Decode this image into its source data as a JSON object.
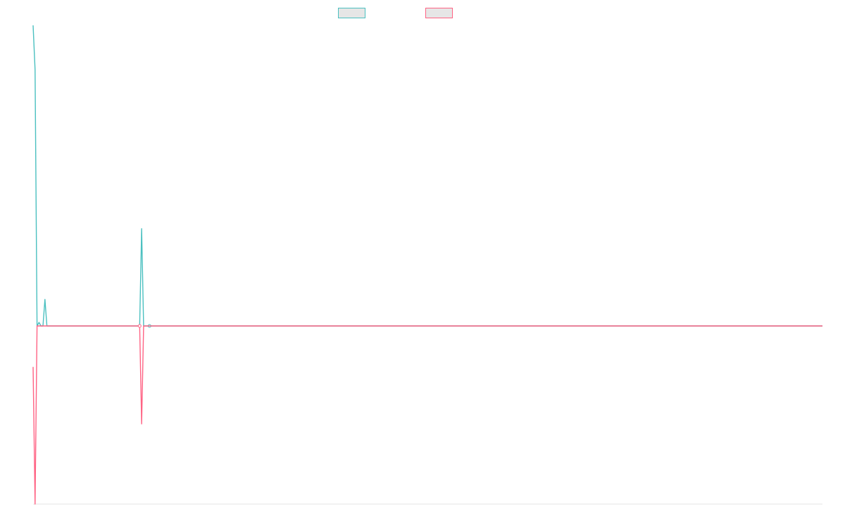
{
  "chart_data": {
    "type": "line",
    "title": "",
    "xlabel": "",
    "ylabel": "",
    "grid": false,
    "legend_position": "top-center",
    "x_count": 400,
    "ylim": [
      -100,
      170
    ],
    "series": [
      {
        "name": "",
        "color": "#4bc0c0",
        "swatch_fill": "#e6e6e6",
        "baseline": 0,
        "points": [
          [
            0,
            170
          ],
          [
            1,
            145
          ],
          [
            2,
            0
          ],
          [
            3,
            2
          ],
          [
            4,
            0
          ],
          [
            5,
            0
          ],
          [
            6,
            15
          ],
          [
            7,
            0
          ],
          [
            54,
            0
          ],
          [
            55,
            55
          ],
          [
            56,
            0
          ],
          [
            57,
            0
          ],
          [
            60,
            0
          ],
          [
            400,
            0
          ]
        ],
        "markers": [
          [
            59,
            0
          ]
        ]
      },
      {
        "name": "",
        "color": "#ff6384",
        "swatch_fill": "#e6e6e6",
        "baseline": 0,
        "points": [
          [
            0,
            -23
          ],
          [
            1,
            -100
          ],
          [
            2,
            0
          ],
          [
            54,
            0
          ],
          [
            55,
            -55
          ],
          [
            56,
            0
          ],
          [
            400,
            0
          ]
        ],
        "markers": [
          [
            54,
            0
          ]
        ]
      }
    ]
  }
}
